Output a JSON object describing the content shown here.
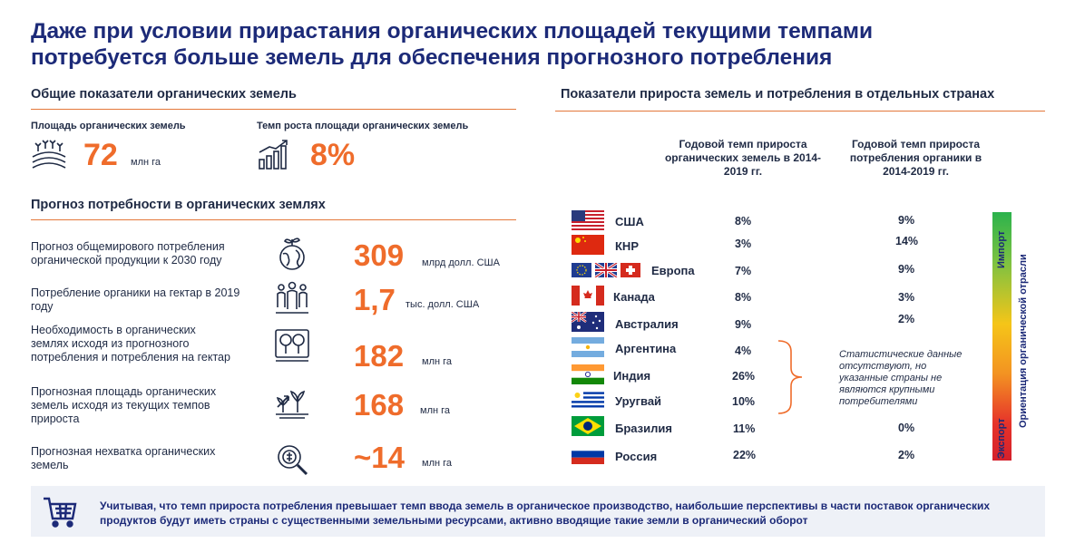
{
  "title": {
    "line1": "Даже при условии прирастания органических площадей текущими темпами",
    "line2": "потребуется больше земель для обеспечения прогнозного потребления"
  },
  "general": {
    "heading": "Общие показатели органических земель",
    "area_label": "Площадь органических земель",
    "area_value": "72",
    "area_unit": "млн га",
    "growth_label": "Темп роста площади органических земель",
    "growth_value": "8%"
  },
  "forecast": {
    "heading": "Прогноз потребности в органических землях",
    "rows": [
      {
        "label": "Прогноз общемирового потребления органической продукции к 2030 году",
        "value": "309",
        "unit": "млрд долл. США",
        "icon": "globe-plant-icon"
      },
      {
        "label": "Потребление органики на гектар в 2019 году",
        "value": "1,7",
        "unit": "тыс. долл. США",
        "icon": "people-icon"
      },
      {
        "label": "Необходимость в органических землях исходя из прогнозного потребления и потребления на гектар",
        "value": "182",
        "unit": "млн га",
        "icon": "trees-icon"
      },
      {
        "label": "Прогнозная площадь органических земель исходя из текущих темпов прироста",
        "value": "168",
        "unit": "млн га",
        "icon": "sprout-growth-icon"
      },
      {
        "label": "Прогнозная нехватка органических земель",
        "value": "~14",
        "unit": "млн га",
        "icon": "magnifier-icon"
      }
    ]
  },
  "countries": {
    "heading": "Показатели прироста земель и потребления в отдельных странах",
    "col1": "Годовой темп прироста органических земель в 2014-2019 гг.",
    "col2": "Годовой темп прироста потребления органики в 2014-2019 гг.",
    "rows": [
      {
        "name": "США",
        "land": "8%",
        "consumption": "9%"
      },
      {
        "name": "КНР",
        "land": "3%",
        "consumption": "14%"
      },
      {
        "name": "Европа",
        "land": "7%",
        "consumption": "9%"
      },
      {
        "name": "Канада",
        "land": "8%",
        "consumption": "3%"
      },
      {
        "name": "Австралия",
        "land": "9%",
        "consumption": "2%"
      },
      {
        "name": "Аргентина",
        "land": "4%",
        "consumption": ""
      },
      {
        "name": "Индия",
        "land": "26%",
        "consumption": ""
      },
      {
        "name": "Уругвай",
        "land": "10%",
        "consumption": ""
      },
      {
        "name": "Бразилия",
        "land": "11%",
        "consumption": "0%"
      },
      {
        "name": "Россия",
        "land": "22%",
        "consumption": "2%"
      }
    ],
    "note": "Статистические данные отсутствуют, но указанные страны не являются крупными потребителями",
    "scale_top": "Импорт",
    "scale_bottom": "Экспорт",
    "scale_title": "Ориентация органической отрасли"
  },
  "footer": {
    "text": "Учитывая, что темп прироста потребления превышает темп ввода земель в органическое производство, наибольшие перспективы в части поставок органических продуктов будут иметь страны с существенными земельными ресурсами, активно вводящие такие земли в органический оборот"
  }
}
